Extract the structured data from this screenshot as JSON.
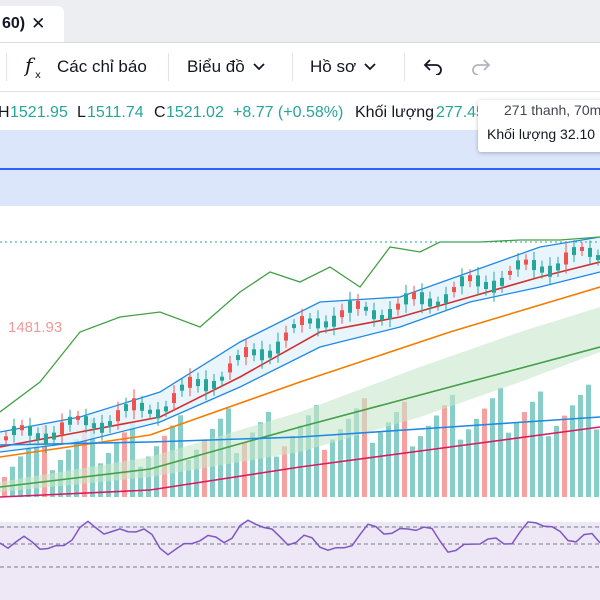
{
  "tab": {
    "title": "60)",
    "close_glyph": "✕"
  },
  "toolbar": {
    "indicators_icon": "function-icon",
    "indicators_label": "Các chỉ báo",
    "chart_label": "Biểu đồ",
    "profile_label": "Hồ sơ",
    "undo_icon": "undo-icon",
    "redo_icon": "redo-icon"
  },
  "ohlc": {
    "h_key": "H",
    "h_value": "1521.95",
    "l_key": "L",
    "l_value": "1511.74",
    "c_key": "C",
    "c_value": "1521.02",
    "change": "+8.77 (+0.58%)",
    "volume_key": "Khối lượng",
    "volume_value": "277.454M"
  },
  "tooltip": {
    "line1": "271 thanh, 70m",
    "line2": "Khối lượng 32.10"
  },
  "price_label": "1481.93",
  "colors": {
    "up": "#26a69a",
    "down": "#ef5350",
    "band": "#dbe6fb",
    "band_line": "#2962ff",
    "oscillator_bg": "#ede7f6",
    "oscillator_line": "#7e57c2",
    "green_line": "#43a047",
    "red_line": "#d32f2f",
    "orange_line": "#f57c00",
    "blue_line": "#1e88e5",
    "magenta_line": "#d81b60",
    "cloud_fill": "#c8e6c9"
  }
}
